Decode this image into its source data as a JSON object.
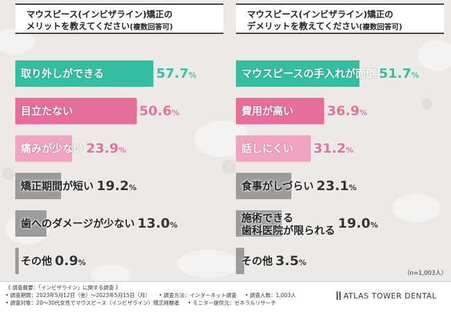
{
  "colors": {
    "teal": "#33bfa0",
    "pink": "#e76d9b",
    "light_pink": "#f3a3c2",
    "gray": "#9b9b9b",
    "text_dark": "#333333"
  },
  "chart_data": [
    {
      "type": "bar",
      "orientation": "horizontal",
      "title_line1": "マウスピース(インビザライン)矯正の",
      "title_line2": "メリットを教えてください",
      "title_note": "(複数回答可)",
      "ylim": [
        0,
        100
      ],
      "categories": [
        "取り外しができる",
        "目立たない",
        "痛みが少ない",
        "矯正期間が短い",
        "歯へのダメージが少ない",
        "その他"
      ],
      "values": [
        57.7,
        50.6,
        23.9,
        19.2,
        13.0,
        0.9
      ],
      "value_labels": [
        "57.7",
        "50.6",
        "23.9",
        "19.2",
        "13.0",
        "0.9"
      ]
    },
    {
      "type": "bar",
      "orientation": "horizontal",
      "title_line1": "マウスピース(インビザライン)矯正の",
      "title_line2": "デメリットを教えてください",
      "title_note": "(複数回答可)",
      "ylim": [
        0,
        100
      ],
      "categories": [
        "マウスピースの手入れが面倒",
        "費用が高い",
        "話しにくい",
        "食事がしづらい",
        "施術できる\n歯科医院が限られる",
        "その他"
      ],
      "values": [
        51.7,
        36.9,
        31.2,
        23.1,
        19.0,
        3.5
      ],
      "value_labels": [
        "51.7",
        "36.9",
        "31.2",
        "23.1",
        "19.0",
        "3.5"
      ]
    }
  ],
  "pct_sign": "%",
  "sample_note": "（n=1,003人）",
  "footer": {
    "line1": "《 調査概要：「インビザライン」に関する調査 》",
    "line2a": "• 調査期間：2023年5月12日（金）〜2023年5月15日（月）",
    "line2b": "• 調査方法：インターネット調査",
    "line2c": "• 調査人数：1,003人",
    "line3a": "• 調査対象：20〜30代女性でマウスピース（インビザライン）矯正経験者",
    "line3b": "• モニター提供元：ゼネラルリサーチ",
    "brand": "ATLAS TOWER DENTAL"
  }
}
